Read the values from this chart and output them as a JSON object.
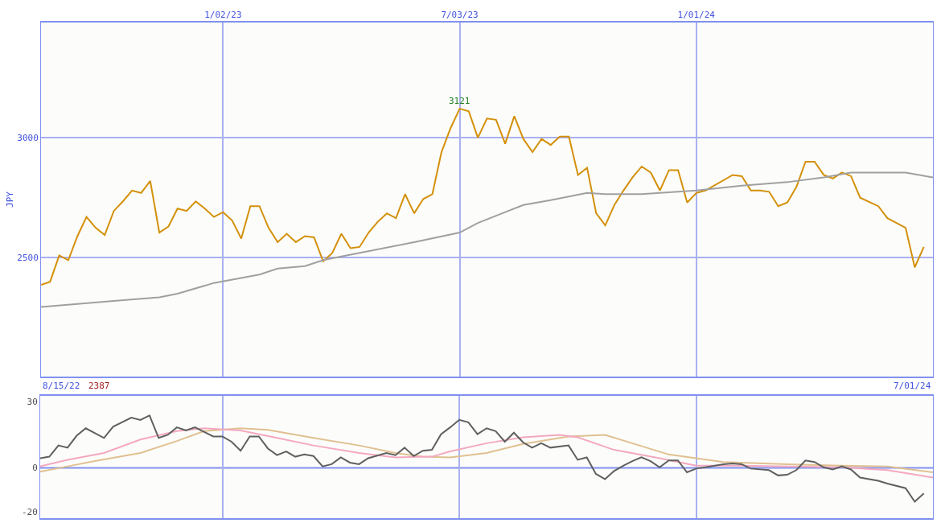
{
  "chart_data": [
    {
      "type": "line",
      "ylabel": "JPY",
      "xlim": [
        "2022-08-15",
        "2024-07-01"
      ],
      "xticks": [
        {
          "value": "2023-01-02",
          "label": "1/02/23"
        },
        {
          "value": "2023-07-03",
          "label": "7/03/23"
        },
        {
          "value": "2024-01-01",
          "label": "1/01/24"
        }
      ],
      "ylim": [
        2005,
        3480
      ],
      "yticks": [
        2500,
        3000
      ],
      "grid": true,
      "legend": false,
      "marker": "none",
      "line_style": "solid",
      "annotations": [
        "8/15/22",
        "2387",
        "7/01/24",
        {
          "text": "3121",
          "x": "2023-07-03",
          "y": 3121
        }
      ],
      "series": [
        {
          "color": "#d4900a",
          "x": [
            "2022-08-15",
            "2022-08-22",
            "2022-08-29",
            "2022-09-05",
            "2022-09-12",
            "2022-09-19",
            "2022-09-26",
            "2022-10-03",
            "2022-10-10",
            "2022-10-17",
            "2022-10-24",
            "2022-10-31",
            "2022-11-07",
            "2022-11-14",
            "2022-11-21",
            "2022-11-28",
            "2022-12-05",
            "2022-12-12",
            "2022-12-19",
            "2022-12-26",
            "2023-01-02",
            "2023-01-09",
            "2023-01-16",
            "2023-01-23",
            "2023-01-30",
            "2023-02-06",
            "2023-02-13",
            "2023-02-20",
            "2023-02-27",
            "2023-03-06",
            "2023-03-13",
            "2023-03-20",
            "2023-03-27",
            "2023-04-03",
            "2023-04-10",
            "2023-04-17",
            "2023-04-24",
            "2023-05-01",
            "2023-05-08",
            "2023-05-15",
            "2023-05-22",
            "2023-05-29",
            "2023-06-05",
            "2023-06-12",
            "2023-06-19",
            "2023-06-26",
            "2023-07-03",
            "2023-07-10",
            "2023-07-17",
            "2023-07-24",
            "2023-07-31",
            "2023-08-07",
            "2023-08-14",
            "2023-08-21",
            "2023-08-28",
            "2023-09-04",
            "2023-09-11",
            "2023-09-18",
            "2023-09-25",
            "2023-10-02",
            "2023-10-09",
            "2023-10-16",
            "2023-10-23",
            "2023-10-30",
            "2023-11-06",
            "2023-11-13",
            "2023-11-20",
            "2023-11-27",
            "2023-12-04",
            "2023-12-11",
            "2023-12-18",
            "2023-12-25",
            "2024-01-01",
            "2024-01-08",
            "2024-01-29",
            "2024-02-05",
            "2024-02-12",
            "2024-02-19",
            "2024-02-26",
            "2024-03-04",
            "2024-03-11",
            "2024-03-18",
            "2024-03-25",
            "2024-04-01",
            "2024-04-08",
            "2024-04-15",
            "2024-04-22",
            "2024-04-29",
            "2024-05-06",
            "2024-05-20",
            "2024-05-27",
            "2024-06-03",
            "2024-06-10",
            "2024-06-17",
            "2024-06-24"
          ],
          "values": [
            2387,
            2400,
            2510,
            2490,
            2590,
            2670,
            2625,
            2595,
            2695,
            2735,
            2780,
            2770,
            2820,
            2605,
            2630,
            2705,
            2695,
            2735,
            2705,
            2670,
            2690,
            2655,
            2580,
            2715,
            2715,
            2625,
            2565,
            2600,
            2565,
            2590,
            2585,
            2485,
            2520,
            2600,
            2540,
            2545,
            2605,
            2650,
            2685,
            2665,
            2765,
            2685,
            2745,
            2765,
            2940,
            3040,
            3121,
            3110,
            3000,
            3080,
            3075,
            2975,
            3090,
            2995,
            2940,
            2995,
            2970,
            3005,
            3005,
            2845,
            2875,
            2685,
            2635,
            2720,
            2780,
            2835,
            2880,
            2855,
            2780,
            2865,
            2865,
            2730,
            2770,
            2780,
            2845,
            2840,
            2780,
            2780,
            2775,
            2715,
            2730,
            2795,
            2900,
            2900,
            2845,
            2830,
            2855,
            2840,
            2750,
            2715,
            2665,
            2645,
            2625,
            2460,
            2545
          ]
        },
        {
          "color": "#a0a0a0",
          "x": [
            "2022-08-15",
            "2022-10-10",
            "2022-11-14",
            "2022-11-28",
            "2022-12-26",
            "2023-01-30",
            "2023-02-13",
            "2023-03-06",
            "2023-03-20",
            "2023-04-03",
            "2023-05-29",
            "2023-07-03",
            "2023-07-17",
            "2023-08-07",
            "2023-08-21",
            "2023-09-11",
            "2023-10-09",
            "2023-10-23",
            "2023-11-20",
            "2024-01-01",
            "2024-02-05",
            "2024-03-11",
            "2024-04-08",
            "2024-04-29",
            "2024-06-10",
            "2024-07-01"
          ],
          "values": [
            2295,
            2320,
            2335,
            2350,
            2395,
            2430,
            2455,
            2465,
            2490,
            2505,
            2565,
            2605,
            2645,
            2690,
            2720,
            2740,
            2770,
            2765,
            2765,
            2780,
            2800,
            2815,
            2835,
            2855,
            2855,
            2835
          ]
        }
      ]
    },
    {
      "type": "line",
      "xlim": [
        "2022-08-15",
        "2024-07-01"
      ],
      "xticks": [
        {
          "value": "2023-01-02",
          "label": null
        },
        {
          "value": "2023-07-03",
          "label": null
        },
        {
          "value": "2024-01-01",
          "label": null
        }
      ],
      "ylim": [
        -22.8,
        32.7
      ],
      "yticks": [
        30,
        0,
        -20
      ],
      "grid": "x",
      "tick_labels": "y",
      "legend": false,
      "marker": "none",
      "line_style": "solid",
      "ref_lines": [
        {
          "axis": "y",
          "value": 0,
          "color": "#8090f0"
        }
      ],
      "series": [
        {
          "color": "#e0c090",
          "x": [
            "2022-08-15",
            "2022-09-05",
            "2022-09-26",
            "2022-10-31",
            "2022-11-28",
            "2022-12-19",
            "2023-01-16",
            "2023-02-06",
            "2023-03-13",
            "2023-04-17",
            "2023-05-15",
            "2023-06-05",
            "2023-06-26",
            "2023-07-24",
            "2023-08-21",
            "2023-09-25",
            "2023-10-23",
            "2023-12-11",
            "2024-01-22",
            "2024-03-11",
            "2024-04-22",
            "2024-05-27",
            "2024-07-01"
          ],
          "values": [
            -1.7,
            0.7,
            3.1,
            6.8,
            12.2,
            16.7,
            18,
            17.3,
            13.6,
            10.2,
            6.8,
            5.1,
            4.8,
            6.8,
            10.9,
            14.3,
            15,
            6.1,
            2.7,
            1.7,
            1,
            0.7,
            -2
          ]
        },
        {
          "color": "#f4a8c0",
          "x": [
            "2022-08-15",
            "2022-09-05",
            "2022-10-03",
            "2022-10-31",
            "2022-11-28",
            "2022-12-19",
            "2023-01-16",
            "2023-02-13",
            "2023-03-13",
            "2023-04-17",
            "2023-05-15",
            "2023-06-12",
            "2023-06-26",
            "2023-07-24",
            "2023-08-21",
            "2023-09-18",
            "2023-10-02",
            "2023-10-30",
            "2023-12-04",
            "2024-01-01",
            "2024-02-05",
            "2024-03-11",
            "2024-04-22",
            "2024-05-27",
            "2024-07-01"
          ],
          "values": [
            0.7,
            3.7,
            6.8,
            12.9,
            16.7,
            18,
            17,
            13.6,
            10.2,
            6.8,
            4.8,
            5.1,
            7.5,
            11.2,
            13.9,
            15,
            13.9,
            8.2,
            4.4,
            1,
            1,
            0.7,
            0.3,
            -1,
            -4.4
          ]
        },
        {
          "color": "#606060",
          "x": [
            "2022-08-15",
            "2022-08-22",
            "2022-08-29",
            "2022-09-05",
            "2022-09-12",
            "2022-09-19",
            "2022-10-03",
            "2022-10-10",
            "2022-10-24",
            "2022-10-31",
            "2022-11-07",
            "2022-11-14",
            "2022-11-21",
            "2022-11-28",
            "2022-12-05",
            "2022-12-12",
            "2022-12-26",
            "2023-01-02",
            "2023-01-09",
            "2023-01-16",
            "2023-01-23",
            "2023-01-30",
            "2023-02-06",
            "2023-02-13",
            "2023-02-20",
            "2023-02-27",
            "2023-03-06",
            "2023-03-13",
            "2023-03-20",
            "2023-03-27",
            "2023-04-03",
            "2023-04-10",
            "2023-04-17",
            "2023-04-24",
            "2023-05-08",
            "2023-05-15",
            "2023-05-22",
            "2023-05-29",
            "2023-06-05",
            "2023-06-12",
            "2023-06-19",
            "2023-06-26",
            "2023-07-03",
            "2023-07-10",
            "2023-07-17",
            "2023-07-24",
            "2023-07-31",
            "2023-08-07",
            "2023-08-14",
            "2023-08-21",
            "2023-08-28",
            "2023-09-04",
            "2023-09-11",
            "2023-09-25",
            "2023-10-02",
            "2023-10-09",
            "2023-10-16",
            "2023-10-23",
            "2023-10-30",
            "2023-11-06",
            "2023-11-13",
            "2023-11-20",
            "2023-11-27",
            "2023-12-04",
            "2023-12-11",
            "2023-12-18",
            "2023-12-25",
            "2024-01-01",
            "2024-01-08",
            "2024-01-22",
            "2024-01-29",
            "2024-02-05",
            "2024-02-12",
            "2024-02-26",
            "2024-03-04",
            "2024-03-11",
            "2024-03-18",
            "2024-03-25",
            "2024-04-01",
            "2024-04-08",
            "2024-04-15",
            "2024-04-22",
            "2024-04-29",
            "2024-05-06",
            "2024-05-20",
            "2024-05-27",
            "2024-06-10",
            "2024-06-17",
            "2024-06-24"
          ],
          "values": [
            4.4,
            5.1,
            10.2,
            9.2,
            14.6,
            18,
            13.6,
            18.7,
            22.8,
            21.8,
            23.8,
            13.6,
            15,
            18.4,
            17,
            18.4,
            14.3,
            14.3,
            11.9,
            7.8,
            14.3,
            14.3,
            8.8,
            5.8,
            7.5,
            5.1,
            6.1,
            5.4,
            0.7,
            1.7,
            4.8,
            2.4,
            1.7,
            4.4,
            6.8,
            5.8,
            9.2,
            5.4,
            7.8,
            8.2,
            15.3,
            18.4,
            21.8,
            20.7,
            15.3,
            18,
            16.7,
            11.9,
            16,
            11.6,
            9.2,
            11.2,
            9.2,
            10.2,
            3.7,
            4.8,
            -2.7,
            -5.1,
            -1.4,
            1,
            3.1,
            4.8,
            3.1,
            0.3,
            3.4,
            3.4,
            -2,
            -0.3,
            0.3,
            1.7,
            2,
            1.7,
            -0.3,
            -1,
            -3.4,
            -3.1,
            -1,
            3.4,
            2.7,
            0.3,
            -0.7,
            0.7,
            -0.7,
            -4.4,
            -5.8,
            -7.1,
            -9.2,
            -15.3,
            -11.6
          ]
        }
      ]
    }
  ]
}
